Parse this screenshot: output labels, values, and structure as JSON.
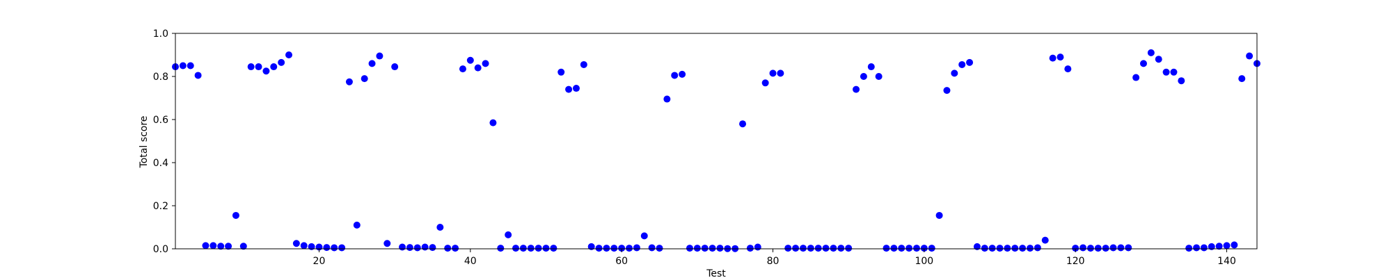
{
  "chart_data": {
    "type": "scatter",
    "title": "",
    "xlabel": "Test",
    "ylabel": "Total score",
    "xlim": [
      1,
      144
    ],
    "ylim": [
      0.0,
      1.0
    ],
    "xticks": [
      20,
      40,
      60,
      80,
      100,
      120,
      140
    ],
    "xtick_labels": [
      "20",
      "40",
      "60",
      "80",
      "100",
      "120",
      "140"
    ],
    "yticks": [
      0.0,
      0.2,
      0.4,
      0.6,
      0.8,
      1.0
    ],
    "ytick_labels": [
      "0.0",
      "0.2",
      "0.4",
      "0.6",
      "0.8",
      "1.0"
    ],
    "grid": false,
    "legend": "none",
    "marker_color": "#0000ff",
    "x": [
      1,
      2,
      3,
      4,
      5,
      6,
      7,
      8,
      9,
      10,
      11,
      12,
      13,
      14,
      15,
      16,
      17,
      18,
      19,
      20,
      21,
      22,
      23,
      24,
      25,
      26,
      27,
      28,
      29,
      30,
      31,
      32,
      33,
      34,
      35,
      36,
      37,
      38,
      39,
      40,
      41,
      42,
      43,
      44,
      45,
      46,
      47,
      48,
      49,
      50,
      51,
      52,
      53,
      54,
      55,
      56,
      57,
      58,
      59,
      60,
      61,
      62,
      63,
      64,
      65,
      66,
      67,
      68,
      69,
      70,
      71,
      72,
      73,
      74,
      75,
      76,
      77,
      78,
      79,
      80,
      81,
      82,
      83,
      84,
      85,
      86,
      87,
      88,
      89,
      90,
      91,
      92,
      93,
      94,
      95,
      96,
      97,
      98,
      99,
      100,
      101,
      102,
      103,
      104,
      105,
      106,
      107,
      108,
      109,
      110,
      111,
      112,
      113,
      114,
      115,
      116,
      117,
      118,
      119,
      120,
      121,
      122,
      123,
      124,
      125,
      126,
      127,
      128,
      129,
      130,
      131,
      132,
      133,
      134,
      135,
      136,
      137,
      138,
      139,
      140,
      141,
      142,
      143,
      144
    ],
    "y": [
      0.845,
      0.85,
      0.85,
      0.805,
      0.015,
      0.015,
      0.012,
      0.012,
      0.155,
      0.012,
      0.845,
      0.845,
      0.825,
      0.845,
      0.865,
      0.9,
      0.025,
      0.015,
      0.01,
      0.008,
      0.006,
      0.005,
      0.005,
      0.775,
      0.11,
      0.79,
      0.86,
      0.895,
      0.025,
      0.845,
      0.008,
      0.006,
      0.005,
      0.008,
      0.006,
      0.1,
      0.003,
      0.003,
      0.835,
      0.875,
      0.84,
      0.86,
      0.585,
      0.003,
      0.065,
      0.003,
      0.003,
      0.003,
      0.003,
      0.003,
      0.003,
      0.82,
      0.74,
      0.745,
      0.855,
      0.01,
      0.003,
      0.003,
      0.003,
      0.003,
      0.003,
      0.005,
      0.06,
      0.005,
      0.003,
      0.695,
      0.805,
      0.81,
      0.003,
      0.003,
      0.003,
      0.003,
      0.003,
      0.001,
      0.001,
      0.58,
      0.003,
      0.008,
      0.77,
      0.815,
      0.815,
      0.003,
      0.003,
      0.003,
      0.003,
      0.003,
      0.003,
      0.003,
      0.003,
      0.003,
      0.74,
      0.8,
      0.845,
      0.8,
      0.003,
      0.003,
      0.003,
      0.003,
      0.003,
      0.003,
      0.003,
      0.155,
      0.735,
      0.815,
      0.855,
      0.865,
      0.01,
      0.003,
      0.003,
      0.003,
      0.003,
      0.003,
      0.003,
      0.003,
      0.005,
      0.04,
      0.885,
      0.89,
      0.835,
      0.003,
      0.005,
      0.003,
      0.003,
      0.003,
      0.005,
      0.005,
      0.005,
      0.795,
      0.86,
      0.91,
      0.88,
      0.82,
      0.82,
      0.78,
      0.003,
      0.005,
      0.005,
      0.01,
      0.012,
      0.015,
      0.018,
      0.79,
      0.895,
      0.86
    ]
  }
}
